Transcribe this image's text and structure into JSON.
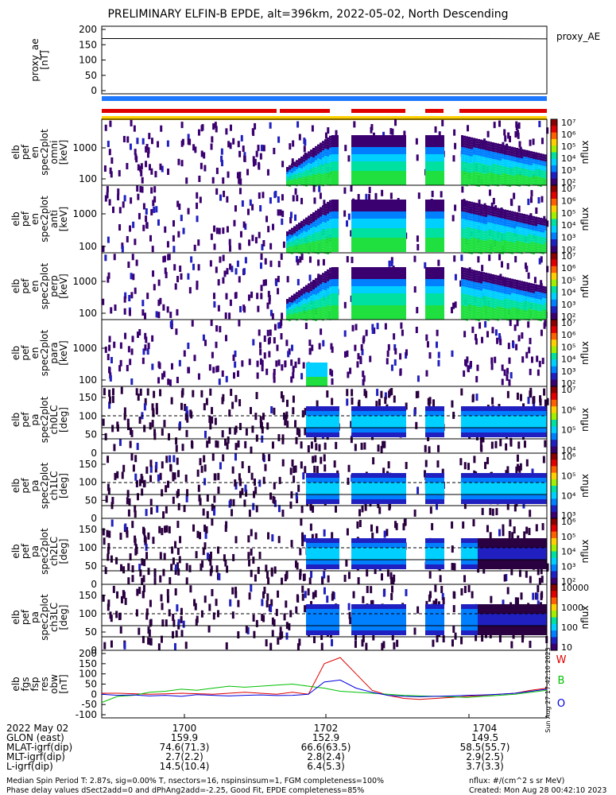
{
  "title": "PRELIMINARY ELFIN-B EPDE, alt=396km, 2022-05-02, North Descending",
  "colors": {
    "W": "#e00000",
    "B": "#00c000",
    "O": "#0000e0",
    "bar_blue": "#1e78ff",
    "bar_red": "#e00000",
    "bar_yellow": "#ffd000"
  },
  "panels": [
    {
      "id": "proxy_ae",
      "label": [
        "proxy_ae",
        "[nT]"
      ],
      "ticks": [
        "200",
        "150",
        "100",
        "50",
        "0"
      ],
      "legend": "proxy_AE"
    },
    {
      "id": "spec_en_1",
      "label": [
        "elb",
        "pef",
        "en",
        "spec2plot",
        "omni",
        "[keV]"
      ],
      "ticks": [
        "1000",
        "100"
      ],
      "cb_label": "nflux"
    },
    {
      "id": "spec_en_2",
      "label": [
        "elb",
        "pef",
        "en",
        "spec2plot",
        "anti",
        "[keV]"
      ],
      "ticks": [
        "1000",
        "100"
      ],
      "cb_label": "nflux"
    },
    {
      "id": "spec_en_3",
      "label": [
        "elb",
        "pef",
        "en",
        "spec2plot",
        "perp",
        "[keV]"
      ],
      "ticks": [
        "1000",
        "100"
      ],
      "cb_label": "nflux"
    },
    {
      "id": "spec_en_4",
      "label": [
        "elb",
        "pef",
        "en",
        "spec2plot",
        "para",
        "[keV]"
      ],
      "ticks": [
        "1000",
        "100"
      ],
      "cb_label": "nflux"
    },
    {
      "id": "pa_0",
      "label": [
        "elb",
        "pef",
        "pa",
        "spec2plot",
        "ch0LC",
        "[deg]"
      ],
      "ticks": [
        "150",
        "100",
        "50",
        "0"
      ],
      "cb_label": "nflux"
    },
    {
      "id": "pa_1",
      "label": [
        "elb",
        "pef",
        "pa",
        "spec2plot",
        "ch1LC",
        "[deg]"
      ],
      "ticks": [
        "150",
        "100",
        "50",
        "0"
      ],
      "cb_label": "nflux"
    },
    {
      "id": "pa_2",
      "label": [
        "elb",
        "pef",
        "pa",
        "spec2plot",
        "ch2LC",
        "[deg]"
      ],
      "ticks": [
        "150",
        "100",
        "50",
        "0"
      ],
      "cb_label": "nflux"
    },
    {
      "id": "pa_3",
      "label": [
        "elb",
        "pef",
        "pa",
        "spec2plot",
        "ch3LC",
        "[deg]"
      ],
      "ticks": [
        "150",
        "100",
        "50",
        "0"
      ],
      "cb_label": "nflux"
    },
    {
      "id": "fgs",
      "label": [
        "elb",
        "fgs",
        "fsp",
        "res",
        "obw",
        "[nT]"
      ],
      "ticks": [
        "200",
        "150",
        "100",
        "50",
        "0",
        "-50",
        "-100"
      ],
      "legend": [
        "W",
        "B",
        "O"
      ]
    }
  ],
  "colorbars": [
    [
      "10⁷",
      "10⁶",
      "10⁵",
      "10⁴",
      "10³",
      "10²"
    ],
    [
      "10⁷",
      "10⁶",
      "10⁵",
      "10⁴",
      "10³",
      "10²"
    ],
    [
      "10⁷",
      "10⁶",
      "10⁵",
      "10⁴",
      "10³",
      "10²"
    ],
    [
      "10⁷",
      "10⁶",
      "10⁵",
      "10⁴",
      "10³",
      "10²"
    ],
    [
      "10⁷",
      "10⁶",
      "10⁵",
      "10⁴"
    ],
    [
      "10⁶",
      "10⁵",
      "10⁴",
      "10³"
    ],
    [
      "10⁶",
      "10⁵",
      "10⁴",
      "10³",
      "10²"
    ],
    [
      "10000",
      "1000",
      "100",
      "10"
    ]
  ],
  "footer": {
    "rows": [
      {
        "label": "2022 May 02",
        "cols": [
          "1700",
          "1702",
          "1704"
        ]
      },
      {
        "label": "GLON (east)",
        "cols": [
          "159.9",
          "152.9",
          "149.5"
        ]
      },
      {
        "label": "MLAT-igrf(dip)",
        "cols": [
          "74.6(71.3)",
          "66.6(63.5)",
          "58.5(55.7)"
        ]
      },
      {
        "label": "MLT-igrf(dip)",
        "cols": [
          "2.7(2.2)",
          "2.8(2.4)",
          "2.9(2.5)"
        ]
      },
      {
        "label": "L-igrf(dip)",
        "cols": [
          "14.5(10.4)",
          "6.4(5.3)",
          "3.7(3.3)"
        ]
      }
    ],
    "note1_left": "Median Spin Period T: 2.87s, sig=0.00% T, nsectors=16, nspinsinsum=1, FGM completeness=100%",
    "note1_right": "nflux: #/(cm^2 s sr MeV)",
    "note2_left": "Phase delay values dSect2add=0 and dPhAng2add=-2.25, Good Fit, EPDE completeness=85%",
    "note2_right": "Created: Mon Aug 28 00:42:10 2023",
    "side_stamp": "Sun Aug 27 17:42:10 2023"
  },
  "chart_data": {
    "type": "line",
    "title": "PRELIMINARY ELFIN-B EPDE, alt=396km, 2022-05-02, North Descending",
    "x_ticks": [
      "1700",
      "1702",
      "1704"
    ],
    "proxy_ae": {
      "ylabel": "proxy_ae [nT]",
      "ylim": [
        0,
        200
      ],
      "values": [
        170,
        170,
        170,
        170,
        170,
        170,
        170,
        169
      ]
    },
    "fgs": {
      "ylabel": "elb fgs fsp res obw [nT]",
      "ylim": [
        -100,
        200
      ],
      "series": [
        {
          "name": "W",
          "values": [
            5,
            5,
            3,
            0,
            2,
            5,
            3,
            0,
            5,
            10,
            5,
            0,
            10,
            0,
            150,
            180,
            100,
            20,
            -5,
            -20,
            -25,
            -20,
            -15,
            -10,
            -5,
            0,
            5,
            20,
            30
          ]
        },
        {
          "name": "B",
          "values": [
            -40,
            -10,
            -5,
            10,
            15,
            25,
            20,
            30,
            40,
            35,
            40,
            45,
            50,
            40,
            30,
            15,
            10,
            5,
            0,
            -5,
            -8,
            -10,
            -12,
            -15,
            -10,
            -5,
            0,
            10,
            20
          ]
        },
        {
          "name": "O",
          "values": [
            0,
            -5,
            -3,
            -8,
            -5,
            -10,
            -2,
            -5,
            -8,
            -5,
            -3,
            -6,
            -5,
            0,
            60,
            70,
            30,
            10,
            -5,
            -10,
            -12,
            -10,
            -8,
            -5,
            -3,
            0,
            5,
            15,
            25
          ]
        }
      ]
    }
  }
}
